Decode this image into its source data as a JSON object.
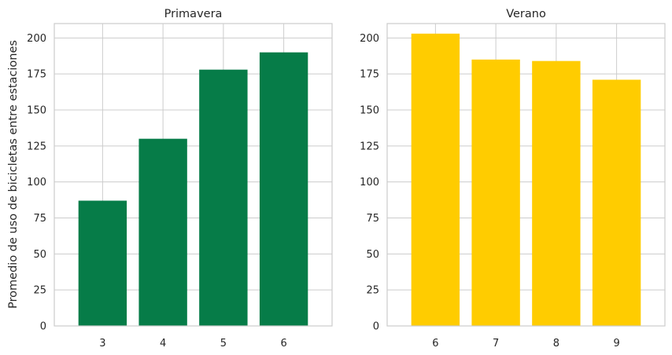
{
  "figure": {
    "ylabel": "Promedio de uso de bicicletas entre estaciones"
  },
  "chart_data": [
    {
      "type": "bar",
      "title": "Primavera",
      "categories": [
        "3",
        "4",
        "5",
        "6"
      ],
      "values": [
        87,
        130,
        178,
        190
      ],
      "color": "#067c48",
      "xlabel": "",
      "ylabel": "Promedio de uso de bicicletas entre estaciones",
      "ylim": [
        0,
        210
      ],
      "yticks": [
        0,
        25,
        50,
        75,
        100,
        125,
        150,
        175,
        200
      ],
      "grid": true
    },
    {
      "type": "bar",
      "title": "Verano",
      "categories": [
        "6",
        "7",
        "8",
        "9"
      ],
      "values": [
        203,
        185,
        184,
        171
      ],
      "color": "#ffcc00",
      "xlabel": "",
      "ylabel": "",
      "ylim": [
        0,
        210
      ],
      "yticks": [
        0,
        25,
        50,
        75,
        100,
        125,
        150,
        175,
        200
      ],
      "grid": true
    }
  ]
}
